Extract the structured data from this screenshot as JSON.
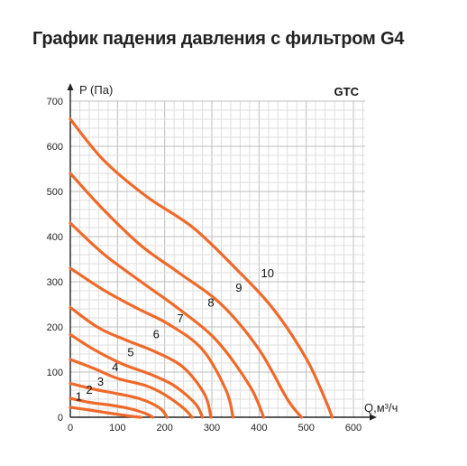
{
  "title": "График падения давления с фильтром G4",
  "chart_data": {
    "type": "line",
    "title": "График падения давления с фильтром G4",
    "brand_label": "GTC",
    "xlabel": "Q,м³/ч",
    "ylabel": "P (Па)",
    "xlim": [
      0,
      600
    ],
    "ylim": [
      0,
      700
    ],
    "x_ticks": [
      0,
      100,
      200,
      300,
      400,
      500,
      600
    ],
    "y_ticks": [
      0,
      100,
      200,
      300,
      400,
      500,
      600,
      700
    ],
    "grid": true,
    "line_color": "#ef6a2a",
    "series": [
      {
        "name": "1",
        "label_at": [
          18,
          37
        ],
        "points": [
          [
            0,
            22
          ],
          [
            40,
            16
          ],
          [
            90,
            8
          ],
          [
            130,
            2
          ],
          [
            150,
            0
          ]
        ]
      },
      {
        "name": "2",
        "label_at": [
          40,
          52
        ],
        "points": [
          [
            0,
            42
          ],
          [
            40,
            33
          ],
          [
            90,
            26
          ],
          [
            130,
            18
          ],
          [
            160,
            8
          ],
          [
            175,
            0
          ]
        ]
      },
      {
        "name": "3",
        "label_at": [
          64,
          70
        ],
        "points": [
          [
            0,
            75
          ],
          [
            50,
            62
          ],
          [
            100,
            52
          ],
          [
            150,
            40
          ],
          [
            190,
            20
          ],
          [
            205,
            0
          ]
        ]
      },
      {
        "name": "4",
        "label_at": [
          95,
          102
        ],
        "points": [
          [
            0,
            128
          ],
          [
            50,
            108
          ],
          [
            100,
            86
          ],
          [
            160,
            70
          ],
          [
            200,
            50
          ],
          [
            240,
            20
          ],
          [
            258,
            0
          ]
        ]
      },
      {
        "name": "5",
        "label_at": [
          128,
          135
        ],
        "points": [
          [
            0,
            183
          ],
          [
            50,
            150
          ],
          [
            110,
            118
          ],
          [
            170,
            95
          ],
          [
            220,
            70
          ],
          [
            265,
            30
          ],
          [
            280,
            0
          ]
        ]
      },
      {
        "name": "6",
        "label_at": [
          182,
          175
        ],
        "points": [
          [
            0,
            243
          ],
          [
            60,
            198
          ],
          [
            120,
            170
          ],
          [
            180,
            145
          ],
          [
            240,
            110
          ],
          [
            285,
            50
          ],
          [
            298,
            0
          ]
        ]
      },
      {
        "name": "7",
        "label_at": [
          233,
          210
        ],
        "points": [
          [
            0,
            330
          ],
          [
            70,
            282
          ],
          [
            140,
            242
          ],
          [
            210,
            205
          ],
          [
            280,
            150
          ],
          [
            330,
            60
          ],
          [
            345,
            0
          ]
        ]
      },
      {
        "name": "8",
        "label_at": [
          298,
          245
        ],
        "points": [
          [
            0,
            430
          ],
          [
            70,
            362
          ],
          [
            150,
            300
          ],
          [
            230,
            240
          ],
          [
            310,
            170
          ],
          [
            380,
            70
          ],
          [
            410,
            0
          ]
        ]
      },
      {
        "name": "9",
        "label_at": [
          357,
          278
        ],
        "points": [
          [
            0,
            540
          ],
          [
            70,
            460
          ],
          [
            150,
            380
          ],
          [
            230,
            320
          ],
          [
            320,
            250
          ],
          [
            400,
            150
          ],
          [
            460,
            40
          ],
          [
            490,
            0
          ]
        ]
      },
      {
        "name": "10",
        "label_at": [
          418,
          310
        ],
        "points": [
          [
            0,
            660
          ],
          [
            70,
            570
          ],
          [
            160,
            490
          ],
          [
            260,
            420
          ],
          [
            350,
            330
          ],
          [
            430,
            240
          ],
          [
            500,
            130
          ],
          [
            540,
            40
          ],
          [
            555,
            0
          ]
        ]
      }
    ]
  }
}
